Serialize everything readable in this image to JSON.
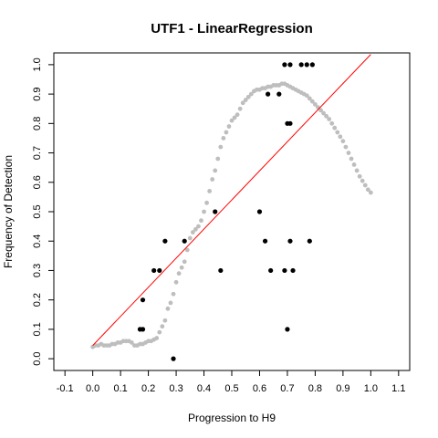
{
  "chart_data": {
    "type": "scatter",
    "title": "UTF1 - LinearRegression",
    "xlabel": "Progression to H9",
    "ylabel": "Frequency of Detection",
    "xlim": [
      -0.14,
      1.14
    ],
    "ylim": [
      -0.04,
      1.04
    ],
    "x_ticks": [
      "-0.1",
      "0.0",
      "0.1",
      "0.2",
      "0.3",
      "0.4",
      "0.5",
      "0.6",
      "0.7",
      "0.8",
      "0.9",
      "1.0",
      "1.1"
    ],
    "y_ticks": [
      "0.0",
      "0.1",
      "0.2",
      "0.3",
      "0.4",
      "0.5",
      "0.6",
      "0.7",
      "0.8",
      "0.9",
      "1.0"
    ],
    "grid": false,
    "colors": {
      "observed": "#000000",
      "smooth": "#bebebe",
      "regression": "#ff0000",
      "frame": "#000000"
    },
    "series": [
      {
        "kind": "observed",
        "points": [
          [
            0.17,
            0.1
          ],
          [
            0.18,
            0.1
          ],
          [
            0.18,
            0.2
          ],
          [
            0.22,
            0.3
          ],
          [
            0.24,
            0.3
          ],
          [
            0.26,
            0.4
          ],
          [
            0.29,
            0.0
          ],
          [
            0.33,
            0.4
          ],
          [
            0.44,
            0.5
          ],
          [
            0.46,
            0.3
          ],
          [
            0.6,
            0.5
          ],
          [
            0.62,
            0.4
          ],
          [
            0.63,
            0.9
          ],
          [
            0.64,
            0.3
          ],
          [
            0.67,
            0.9
          ],
          [
            0.69,
            1.0
          ],
          [
            0.69,
            0.3
          ],
          [
            0.7,
            0.1
          ],
          [
            0.7,
            0.8
          ],
          [
            0.71,
            1.0
          ],
          [
            0.71,
            0.8
          ],
          [
            0.71,
            0.4
          ],
          [
            0.72,
            0.3
          ],
          [
            0.75,
            1.0
          ],
          [
            0.77,
            1.0
          ],
          [
            0.78,
            0.4
          ],
          [
            0.79,
            1.0
          ]
        ]
      },
      {
        "kind": "smooth",
        "points": [
          [
            0.0,
            0.04
          ],
          [
            0.01,
            0.045
          ],
          [
            0.02,
            0.045
          ],
          [
            0.03,
            0.05
          ],
          [
            0.04,
            0.045
          ],
          [
            0.05,
            0.045
          ],
          [
            0.06,
            0.045
          ],
          [
            0.07,
            0.05
          ],
          [
            0.08,
            0.05
          ],
          [
            0.09,
            0.055
          ],
          [
            0.1,
            0.055
          ],
          [
            0.11,
            0.06
          ],
          [
            0.12,
            0.06
          ],
          [
            0.13,
            0.06
          ],
          [
            0.14,
            0.055
          ],
          [
            0.15,
            0.045
          ],
          [
            0.16,
            0.045
          ],
          [
            0.17,
            0.05
          ],
          [
            0.18,
            0.05
          ],
          [
            0.19,
            0.055
          ],
          [
            0.2,
            0.06
          ],
          [
            0.21,
            0.06
          ],
          [
            0.22,
            0.065
          ],
          [
            0.23,
            0.07
          ],
          [
            0.24,
            0.09
          ],
          [
            0.25,
            0.11
          ],
          [
            0.26,
            0.13
          ],
          [
            0.27,
            0.17
          ],
          [
            0.28,
            0.19
          ],
          [
            0.29,
            0.22
          ],
          [
            0.3,
            0.26
          ],
          [
            0.31,
            0.29
          ],
          [
            0.32,
            0.31
          ],
          [
            0.33,
            0.33
          ],
          [
            0.34,
            0.37
          ],
          [
            0.35,
            0.41
          ],
          [
            0.36,
            0.43
          ],
          [
            0.37,
            0.44
          ],
          [
            0.38,
            0.45
          ],
          [
            0.39,
            0.47
          ],
          [
            0.4,
            0.5
          ],
          [
            0.41,
            0.53
          ],
          [
            0.42,
            0.57
          ],
          [
            0.43,
            0.61
          ],
          [
            0.44,
            0.64
          ],
          [
            0.45,
            0.68
          ],
          [
            0.46,
            0.72
          ],
          [
            0.47,
            0.75
          ],
          [
            0.48,
            0.77
          ],
          [
            0.49,
            0.79
          ],
          [
            0.5,
            0.81
          ],
          [
            0.51,
            0.82
          ],
          [
            0.52,
            0.83
          ],
          [
            0.53,
            0.85
          ],
          [
            0.54,
            0.87
          ],
          [
            0.55,
            0.88
          ],
          [
            0.56,
            0.89
          ],
          [
            0.57,
            0.9
          ],
          [
            0.58,
            0.91
          ],
          [
            0.59,
            0.915
          ],
          [
            0.6,
            0.915
          ],
          [
            0.61,
            0.92
          ],
          [
            0.62,
            0.92
          ],
          [
            0.63,
            0.925
          ],
          [
            0.64,
            0.925
          ],
          [
            0.65,
            0.93
          ],
          [
            0.66,
            0.93
          ],
          [
            0.67,
            0.93
          ],
          [
            0.68,
            0.935
          ],
          [
            0.69,
            0.935
          ],
          [
            0.7,
            0.93
          ],
          [
            0.71,
            0.925
          ],
          [
            0.72,
            0.92
          ],
          [
            0.73,
            0.915
          ],
          [
            0.74,
            0.91
          ],
          [
            0.75,
            0.905
          ],
          [
            0.76,
            0.9
          ],
          [
            0.77,
            0.895
          ],
          [
            0.78,
            0.885
          ],
          [
            0.79,
            0.875
          ],
          [
            0.8,
            0.865
          ],
          [
            0.81,
            0.855
          ],
          [
            0.82,
            0.845
          ],
          [
            0.83,
            0.835
          ],
          [
            0.84,
            0.825
          ],
          [
            0.85,
            0.815
          ],
          [
            0.86,
            0.8
          ],
          [
            0.87,
            0.785
          ],
          [
            0.88,
            0.77
          ],
          [
            0.89,
            0.755
          ],
          [
            0.9,
            0.74
          ],
          [
            0.91,
            0.72
          ],
          [
            0.92,
            0.7
          ],
          [
            0.93,
            0.68
          ],
          [
            0.94,
            0.66
          ],
          [
            0.95,
            0.64
          ],
          [
            0.96,
            0.62
          ],
          [
            0.97,
            0.605
          ],
          [
            0.98,
            0.59
          ],
          [
            0.99,
            0.575
          ],
          [
            1.0,
            0.565
          ]
        ]
      }
    ],
    "regression_line": {
      "from": [
        0.0,
        0.045
      ],
      "to": [
        1.0,
        1.035
      ]
    }
  }
}
